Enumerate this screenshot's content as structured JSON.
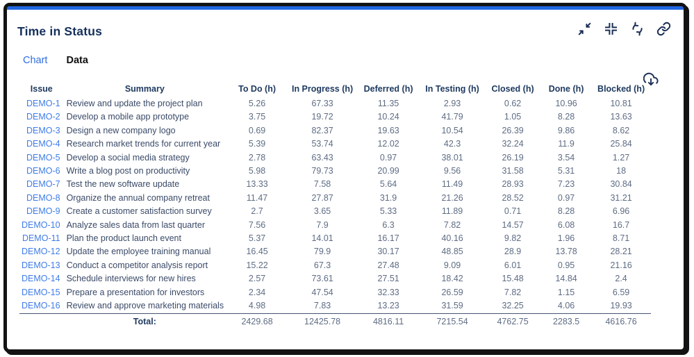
{
  "header": {
    "title": "Time in Status"
  },
  "toolbar": {
    "icons": [
      {
        "name": "collapse-arrows-icon"
      },
      {
        "name": "compress-icon"
      },
      {
        "name": "refresh-icon"
      },
      {
        "name": "link-icon"
      }
    ]
  },
  "tabs": {
    "chart": "Chart",
    "data": "Data",
    "active": "Data"
  },
  "export": {
    "icon": "cloud-download-icon"
  },
  "table": {
    "columns": [
      "Issue",
      "Summary",
      "To Do (h)",
      "In Progress (h)",
      "Deferred (h)",
      "In Testing (h)",
      "Closed (h)",
      "Done (h)",
      "Blocked (h)"
    ],
    "rows": [
      {
        "issue": "DEMO-1",
        "summary": "Review and update the project plan",
        "values": [
          "5.26",
          "67.33",
          "11.35",
          "2.93",
          "0.62",
          "10.96",
          "10.81"
        ]
      },
      {
        "issue": "DEMO-2",
        "summary": "Develop a mobile app prototype",
        "values": [
          "3.75",
          "19.72",
          "10.24",
          "41.79",
          "1.05",
          "8.28",
          "13.63"
        ]
      },
      {
        "issue": "DEMO-3",
        "summary": "Design a new company logo",
        "values": [
          "0.69",
          "82.37",
          "19.63",
          "10.54",
          "26.39",
          "9.86",
          "8.62"
        ]
      },
      {
        "issue": "DEMO-4",
        "summary": "Research market trends for current year",
        "values": [
          "5.39",
          "53.74",
          "12.02",
          "42.3",
          "32.24",
          "11.9",
          "25.84"
        ]
      },
      {
        "issue": "DEMO-5",
        "summary": "Develop a social media strategy",
        "values": [
          "2.78",
          "63.43",
          "0.97",
          "38.01",
          "26.19",
          "3.54",
          "1.27"
        ]
      },
      {
        "issue": "DEMO-6",
        "summary": "Write a blog post on productivity",
        "values": [
          "5.98",
          "79.73",
          "20.99",
          "9.56",
          "31.58",
          "5.31",
          "18"
        ]
      },
      {
        "issue": "DEMO-7",
        "summary": "Test the new software update",
        "values": [
          "13.33",
          "7.58",
          "5.64",
          "11.49",
          "28.93",
          "7.23",
          "30.84"
        ]
      },
      {
        "issue": "DEMO-8",
        "summary": "Organize the annual company retreat",
        "values": [
          "11.47",
          "27.87",
          "31.9",
          "21.26",
          "28.52",
          "0.97",
          "31.21"
        ]
      },
      {
        "issue": "DEMO-9",
        "summary": "Create a customer satisfaction survey",
        "values": [
          "2.7",
          "3.65",
          "5.33",
          "11.89",
          "0.71",
          "8.28",
          "6.96"
        ]
      },
      {
        "issue": "DEMO-10",
        "summary": "Analyze sales data from last quarter",
        "values": [
          "7.56",
          "7.9",
          "6.3",
          "7.82",
          "14.57",
          "6.08",
          "16.7"
        ]
      },
      {
        "issue": "DEMO-11",
        "summary": "Plan the product launch event",
        "values": [
          "5.37",
          "14.01",
          "16.17",
          "40.16",
          "9.82",
          "1.96",
          "8.71"
        ]
      },
      {
        "issue": "DEMO-12",
        "summary": "Update the employee training manual",
        "values": [
          "16.45",
          "79.9",
          "30.17",
          "48.85",
          "28.9",
          "13.78",
          "28.21"
        ]
      },
      {
        "issue": "DEMO-13",
        "summary": "Conduct a competitor analysis report",
        "values": [
          "15.22",
          "67.3",
          "27.48",
          "9.09",
          "6.01",
          "0.95",
          "21.16"
        ]
      },
      {
        "issue": "DEMO-14",
        "summary": "Schedule interviews for new hires",
        "values": [
          "2.57",
          "73.61",
          "27.51",
          "18.42",
          "15.48",
          "14.84",
          "2.4"
        ]
      },
      {
        "issue": "DEMO-15",
        "summary": "Prepare a presentation for investors",
        "values": [
          "2.34",
          "47.54",
          "32.33",
          "26.59",
          "7.82",
          "1.15",
          "6.59"
        ]
      },
      {
        "issue": "DEMO-16",
        "summary": "Review and approve marketing materials",
        "values": [
          "4.98",
          "7.83",
          "13.23",
          "31.59",
          "32.25",
          "4.06",
          "19.93"
        ]
      }
    ],
    "total_label": "Total:",
    "totals": [
      "2429.68",
      "12425.78",
      "4816.11",
      "7215.54",
      "4762.75",
      "2283.5",
      "4616.76"
    ]
  },
  "colors": {
    "accent_bar": "#2066E0",
    "frame_border": "#131313",
    "title": "#15305C",
    "icon": "#1B2F55",
    "tab_inactive": "#2F6DE4",
    "tab_active": "#101010",
    "header_text": "#1F3A60",
    "issue_link": "#3F7CE8",
    "summary_text": "#3A4A68",
    "number_text": "#5E6C84",
    "total_rule": "#44546F"
  }
}
